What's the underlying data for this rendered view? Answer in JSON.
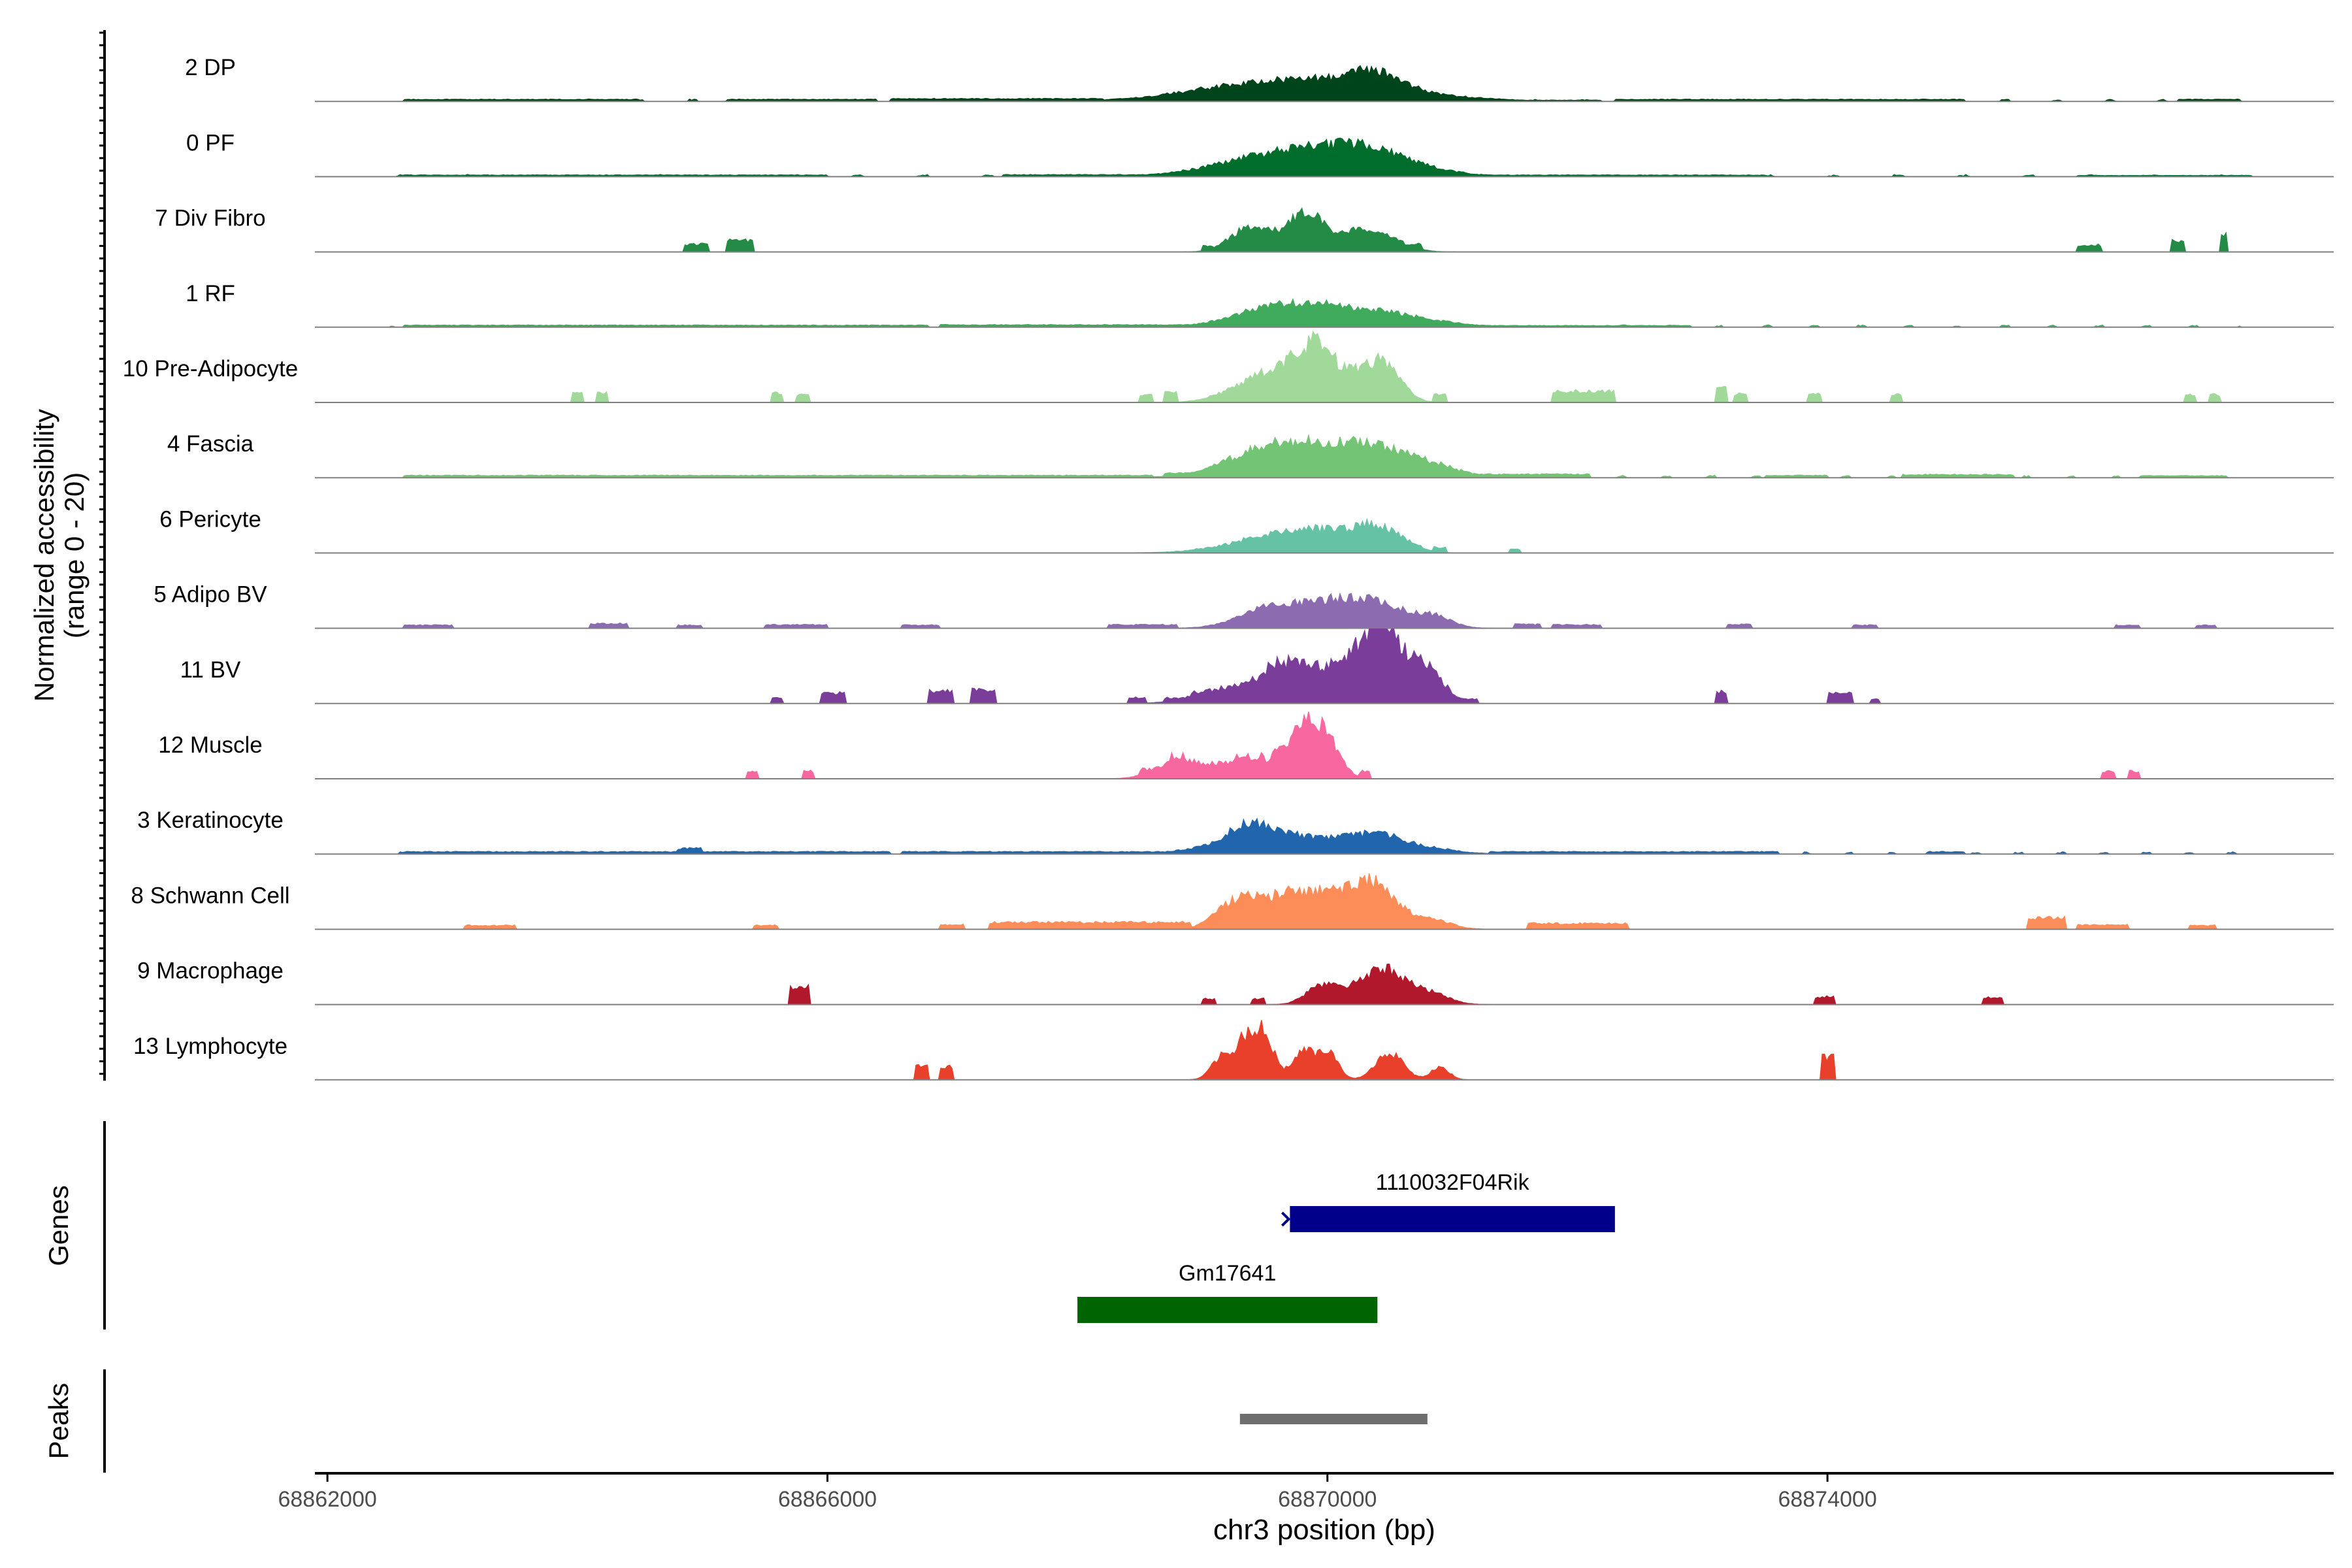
{
  "chart_data": {
    "type": "area",
    "title": "",
    "ylabel": "Normalized accessibility",
    "ylabel_range": "(range 0 - 20)",
    "y_range": [
      0,
      20
    ],
    "xlabel": "chr3 position (bp)",
    "xlim": [
      68861900,
      68878050
    ],
    "x_ticks": [
      {
        "value": 68862000,
        "label": "68862000"
      },
      {
        "value": 68866000,
        "label": "68866000"
      },
      {
        "value": 68870000,
        "label": "68870000"
      },
      {
        "value": 68874000,
        "label": "68874000"
      }
    ],
    "tracks": [
      {
        "name": "2 DP",
        "color": "#00441b",
        "baseline": 0.2,
        "noise_every": 420,
        "peaks": [
          [
            68869200,
            2.8,
            500
          ],
          [
            68869800,
            3.6,
            450
          ],
          [
            68870250,
            2.2,
            350
          ],
          [
            68870400,
            4.2,
            200
          ],
          [
            68870900,
            1.2,
            400
          ]
        ],
        "blocks": [
          [
            68862600,
            68864500,
            0.5
          ],
          [
            68865200,
            68866400,
            0.5
          ],
          [
            68866500,
            68868200,
            0.7
          ],
          [
            68871000,
            68872200,
            0.3
          ],
          [
            68872300,
            68875100,
            0.5
          ],
          [
            68876800,
            68877300,
            0.5
          ]
        ]
      },
      {
        "name": "0 PF",
        "color": "#006d2c",
        "baseline": 0.15,
        "noise_every": 520,
        "peaks": [
          [
            68869500,
            4.5,
            450
          ],
          [
            68869950,
            4.0,
            350
          ],
          [
            68870350,
            4.8,
            280
          ],
          [
            68870800,
            1.4,
            300
          ]
        ],
        "blocks": [
          [
            68862600,
            68866000,
            0.4
          ],
          [
            68867400,
            68868900,
            0.5
          ],
          [
            68871200,
            68873500,
            0.4
          ],
          [
            68876000,
            68877400,
            0.3
          ]
        ]
      },
      {
        "name": "7 Div Fibro",
        "color": "#238b45",
        "baseline": 0,
        "noise_every": 0,
        "peaks": [
          [
            68869300,
            4.0,
            130
          ],
          [
            68869450,
            3.4,
            120
          ],
          [
            68869720,
            4.5,
            150
          ],
          [
            68869850,
            5.8,
            120
          ],
          [
            68870020,
            2.5,
            160
          ],
          [
            68870250,
            3.2,
            130
          ],
          [
            68870440,
            3.8,
            170
          ]
        ],
        "blocks": [
          [
            68864850,
            68865050,
            2.0
          ],
          [
            68865200,
            68865400,
            3.0
          ],
          [
            68869000,
            68869080,
            1.5
          ],
          [
            68870650,
            68870750,
            2.2
          ],
          [
            68876000,
            68876200,
            1.8
          ],
          [
            68876750,
            68876850,
            3.0
          ],
          [
            68877150,
            68877200,
            4.5
          ]
        ]
      },
      {
        "name": "1 RF",
        "color": "#41ab5d",
        "baseline": 0.2,
        "noise_every": 380,
        "peaks": [
          [
            68869450,
            3.2,
            300
          ],
          [
            68869800,
            4.0,
            280
          ],
          [
            68870100,
            2.6,
            200
          ],
          [
            68870450,
            3.0,
            180
          ],
          [
            68870800,
            1.8,
            260
          ]
        ],
        "blocks": [
          [
            68862600,
            68866800,
            0.5
          ],
          [
            68866900,
            68868900,
            0.6
          ],
          [
            68871200,
            68872900,
            0.4
          ]
        ]
      },
      {
        "name": "10 Pre-Adipocyte",
        "color": "#a1d99b",
        "baseline": 0,
        "noise_every": 0,
        "peaks": [
          [
            68869250,
            2.5,
            180
          ],
          [
            68869500,
            4.0,
            160
          ],
          [
            68869750,
            6.5,
            200
          ],
          [
            68869900,
            9.0,
            140
          ],
          [
            68870100,
            3.5,
            180
          ],
          [
            68870350,
            7.0,
            160
          ],
          [
            68870500,
            5.0,
            120
          ]
        ],
        "blocks": [
          [
            68863950,
            68864050,
            2.5
          ],
          [
            68864150,
            68864250,
            2.5
          ],
          [
            68865550,
            68865650,
            2.5
          ],
          [
            68865750,
            68865850,
            2.0
          ],
          [
            68868500,
            68868600,
            2.0
          ],
          [
            68868700,
            68868800,
            2.5
          ],
          [
            68870850,
            68870950,
            2.0
          ],
          [
            68871800,
            68872300,
            3.0
          ],
          [
            68873100,
            68873200,
            3.8
          ],
          [
            68873250,
            68873350,
            2.2
          ],
          [
            68873850,
            68873950,
            2.5
          ],
          [
            68874500,
            68874600,
            2.0
          ],
          [
            68876850,
            68876950,
            2.0
          ],
          [
            68877050,
            68877150,
            2.0
          ]
        ]
      },
      {
        "name": "4 Fascia",
        "color": "#74c476",
        "baseline": 0.25,
        "noise_every": 360,
        "peaks": [
          [
            68869500,
            4.5,
            350
          ],
          [
            68869850,
            6.0,
            400
          ],
          [
            68870250,
            3.2,
            250
          ],
          [
            68870550,
            4.0,
            280
          ],
          [
            68870900,
            1.6,
            200
          ]
        ],
        "blocks": [
          [
            68862600,
            68868600,
            0.6
          ],
          [
            68868700,
            68869000,
            1.2
          ],
          [
            68871200,
            68872100,
            0.9
          ],
          [
            68873500,
            68874000,
            0.6
          ],
          [
            68874600,
            68875500,
            0.8
          ],
          [
            68876500,
            68877200,
            0.5
          ]
        ]
      },
      {
        "name": "6 Pericyte",
        "color": "#66c2a4",
        "baseline": 0,
        "noise_every": 0,
        "peaks": [
          [
            68869500,
            3.0,
            350
          ],
          [
            68869850,
            3.8,
            300
          ],
          [
            68870150,
            2.6,
            200
          ],
          [
            68870400,
            5.5,
            140
          ],
          [
            68870650,
            2.0,
            120
          ]
        ],
        "blocks": [
          [
            68868950,
            68869050,
            1.2
          ],
          [
            68870850,
            68870950,
            1.5
          ],
          [
            68871450,
            68871550,
            1.0
          ]
        ]
      },
      {
        "name": "5 Adipo BV",
        "color": "#8c6bb1",
        "baseline": 0.1,
        "noise_every": 0,
        "peaks": [
          [
            68869450,
            3.0,
            220
          ],
          [
            68869750,
            4.2,
            250
          ],
          [
            68870000,
            3.0,
            200
          ],
          [
            68870250,
            4.5,
            200
          ],
          [
            68870500,
            4.0,
            180
          ],
          [
            68870850,
            3.2,
            140
          ]
        ],
        "blocks": [
          [
            68862600,
            68863000,
            0.8
          ],
          [
            68864100,
            68864400,
            1.2
          ],
          [
            68864800,
            68865000,
            0.8
          ],
          [
            68865500,
            68866000,
            0.9
          ],
          [
            68866600,
            68866900,
            0.8
          ],
          [
            68868250,
            68868800,
            0.9
          ],
          [
            68871500,
            68871700,
            1.0
          ],
          [
            68871800,
            68872200,
            0.9
          ],
          [
            68873200,
            68873400,
            1.0
          ],
          [
            68874200,
            68874400,
            0.8
          ],
          [
            68876300,
            68876500,
            0.8
          ],
          [
            68876950,
            68877100,
            0.8
          ]
        ]
      },
      {
        "name": "11 BV",
        "color": "#7a3d9a",
        "baseline": 0,
        "noise_every": 0,
        "peaks": [
          [
            68869200,
            4.0,
            250
          ],
          [
            68869600,
            7.0,
            150
          ],
          [
            68869850,
            5.0,
            200
          ],
          [
            68870100,
            5.5,
            220
          ],
          [
            68870350,
            8.0,
            180
          ],
          [
            68870450,
            10.5,
            150
          ],
          [
            68870700,
            6.0,
            150
          ],
          [
            68870850,
            4.5,
            120
          ]
        ],
        "blocks": [
          [
            68865550,
            68865650,
            1.5
          ],
          [
            68865950,
            68866150,
            2.8
          ],
          [
            68866800,
            68867000,
            3.2
          ],
          [
            68867150,
            68867350,
            3.5
          ],
          [
            68868400,
            68868550,
            1.5
          ],
          [
            68868700,
            68868800,
            1.5
          ],
          [
            68868900,
            68869200,
            3.0
          ],
          [
            68871000,
            68871200,
            1.2
          ],
          [
            68873100,
            68873200,
            3.0
          ],
          [
            68874000,
            68874200,
            3.0
          ],
          [
            68874350,
            68874420,
            1.2
          ]
        ]
      },
      {
        "name": "12 Muscle",
        "color": "#f768a1",
        "baseline": 0,
        "noise_every": 0,
        "peaks": [
          [
            68868750,
            3.0,
            160
          ],
          [
            68869000,
            2.8,
            200
          ],
          [
            68869400,
            3.5,
            220
          ],
          [
            68869750,
            7.0,
            150
          ],
          [
            68869900,
            10.0,
            120
          ],
          [
            68870050,
            4.0,
            100
          ]
        ],
        "blocks": [
          [
            68865350,
            68865450,
            2.0
          ],
          [
            68865800,
            68865900,
            2.0
          ],
          [
            68868500,
            68868650,
            2.5
          ],
          [
            68868750,
            68868850,
            6.0
          ],
          [
            68868950,
            68869050,
            4.0
          ],
          [
            68869250,
            68869500,
            6.0
          ],
          [
            68869550,
            68869850,
            7.0
          ],
          [
            68870250,
            68870350,
            2.0
          ],
          [
            68876200,
            68876300,
            2.0
          ],
          [
            68876400,
            68876500,
            2.0
          ]
        ]
      },
      {
        "name": "3 Keratinocyte",
        "color": "#2166ac",
        "baseline": 0.2,
        "noise_every": 340,
        "peaks": [
          [
            68869050,
            1.5,
            250
          ],
          [
            68869350,
            4.5,
            150
          ],
          [
            68869550,
            3.8,
            250
          ],
          [
            68869900,
            2.5,
            300
          ],
          [
            68870200,
            2.0,
            200
          ],
          [
            68870450,
            3.5,
            180
          ],
          [
            68870800,
            1.5,
            220
          ]
        ],
        "blocks": [
          [
            68862600,
            68866500,
            0.6
          ],
          [
            68864800,
            68865000,
            1.5
          ],
          [
            68866600,
            68868700,
            0.6
          ],
          [
            68871300,
            68873600,
            0.6
          ],
          [
            68874800,
            68875100,
            0.6
          ]
        ]
      },
      {
        "name": "8 Schwann Cell",
        "color": "#fc8d59",
        "baseline": 0,
        "noise_every": 0,
        "peaks": [
          [
            68869250,
            5.5,
            150
          ],
          [
            68869600,
            5.0,
            250
          ],
          [
            68869900,
            6.5,
            300
          ],
          [
            68870200,
            4.0,
            200
          ],
          [
            68870400,
            8.0,
            160
          ],
          [
            68870800,
            3.0,
            160
          ]
        ],
        "blocks": [
          [
            68863100,
            68863500,
            1.0
          ],
          [
            68865400,
            68865600,
            1.0
          ],
          [
            68866900,
            68867100,
            1.2
          ],
          [
            68867300,
            68868900,
            1.8
          ],
          [
            68871600,
            68872400,
            1.5
          ],
          [
            68875600,
            68875900,
            3.0
          ],
          [
            68876000,
            68876400,
            1.2
          ],
          [
            68876900,
            68877100,
            1.0
          ]
        ]
      },
      {
        "name": "9 Macrophage",
        "color": "#b2182b",
        "baseline": 0,
        "noise_every": 0,
        "peaks": [
          [
            68869950,
            5.0,
            120
          ],
          [
            68870200,
            2.5,
            120
          ],
          [
            68870400,
            6.5,
            140
          ],
          [
            68870550,
            4.0,
            120
          ],
          [
            68870800,
            3.5,
            150
          ]
        ],
        "blocks": [
          [
            68865700,
            68865850,
            4.5
          ],
          [
            68869000,
            68869100,
            1.5
          ],
          [
            68869400,
            68869500,
            1.5
          ],
          [
            68873900,
            68874050,
            2.0
          ],
          [
            68875250,
            68875400,
            1.8
          ]
        ]
      },
      {
        "name": "13 Lymphocyte",
        "color": "#e8402a",
        "baseline": 0,
        "noise_every": 0,
        "peaks": [
          [
            68869150,
            5.5,
            80
          ],
          [
            68869350,
            10.5,
            90
          ],
          [
            68869500,
            10.0,
            80
          ],
          [
            68869800,
            8.0,
            80
          ],
          [
            68870000,
            7.5,
            80
          ],
          [
            68870500,
            7.0,
            110
          ],
          [
            68870900,
            3.5,
            70
          ]
        ],
        "blocks": [
          [
            68866700,
            68866800,
            3.5
          ],
          [
            68866900,
            68867000,
            3.5
          ],
          [
            68873950,
            68874050,
            6.0
          ]
        ]
      }
    ],
    "genes_label": "Genes",
    "genes": [
      {
        "name": "1110032F04Rik",
        "start": 68869700,
        "end": 68872300,
        "row": 0,
        "color": "#00008b"
      },
      {
        "name": "Gm17641",
        "start": 68868000,
        "end": 68870400,
        "row": 1,
        "color": "#006400"
      }
    ],
    "peaks_label": "Peaks",
    "peak_regions": [
      {
        "start": 68869300,
        "end": 68870800,
        "color": "#6e6e6e"
      }
    ]
  }
}
